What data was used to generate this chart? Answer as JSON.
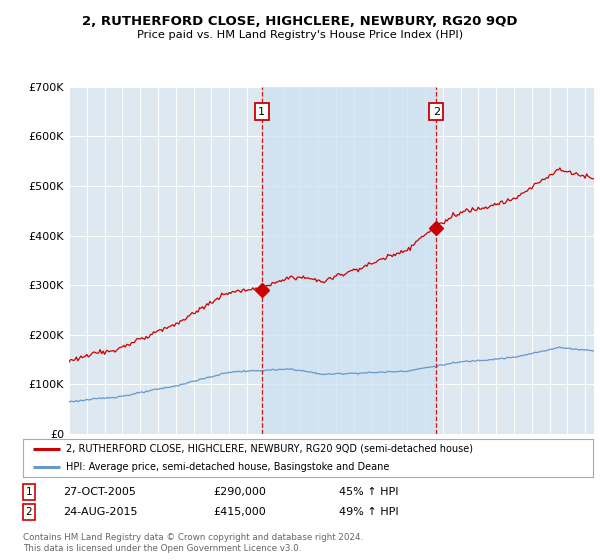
{
  "title": "2, RUTHERFORD CLOSE, HIGHCLERE, NEWBURY, RG20 9QD",
  "subtitle": "Price paid vs. HM Land Registry's House Price Index (HPI)",
  "legend_line1": "2, RUTHERFORD CLOSE, HIGHCLERE, NEWBURY, RG20 9QD (semi-detached house)",
  "legend_line2": "HPI: Average price, semi-detached house, Basingstoke and Deane",
  "footnote": "Contains HM Land Registry data © Crown copyright and database right 2024.\nThis data is licensed under the Open Government Licence v3.0.",
  "sale1_date": "27-OCT-2005",
  "sale1_price": 290000,
  "sale1_pct": "45% ↑ HPI",
  "sale1_x": 2005.82,
  "sale2_date": "24-AUG-2015",
  "sale2_price": 415000,
  "sale2_pct": "49% ↑ HPI",
  "sale2_x": 2015.64,
  "ylim": [
    0,
    700000
  ],
  "xlim_start": 1995.0,
  "xlim_end": 2024.5,
  "background_color": "#dde8f0",
  "shaded_color": "#cce0f0",
  "plot_bg_color": "#dde8f0",
  "red_line_color": "#cc0000",
  "blue_line_color": "#6699cc",
  "marker_box_color": "#cc0000",
  "vline_color": "#cc0000"
}
